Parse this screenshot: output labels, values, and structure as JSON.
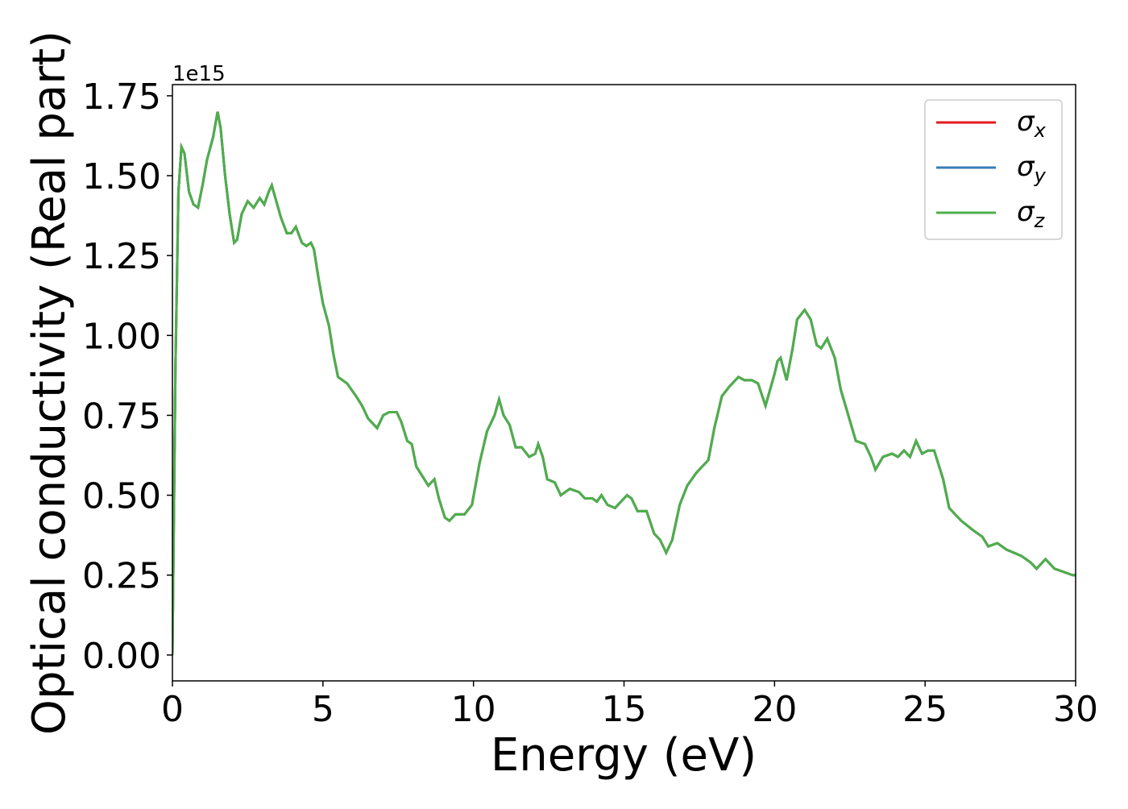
{
  "chart_data": {
    "type": "line",
    "xlabel": "Energy (eV)",
    "ylabel": "Optical conductivity (Real part)",
    "offset_label": "1e15",
    "xlim": [
      0,
      30
    ],
    "ylim": [
      -0.081,
      1.785
    ],
    "xticks": [
      0,
      5,
      10,
      15,
      20,
      25,
      30
    ],
    "yticks": [
      {
        "value": 0,
        "label": "0.00"
      },
      0.25,
      {
        "value": 0.5,
        "label": "0.50"
      },
      0.75,
      {
        "value": 1,
        "label": "1.00"
      },
      1.25,
      {
        "value": 1.5,
        "label": "1.50"
      },
      1.75
    ],
    "legend": "upper right",
    "grid": false,
    "x": [
      0,
      0.1,
      0.2,
      0.3,
      0.4,
      0.55,
      0.7,
      0.85,
      1.0,
      1.15,
      1.35,
      1.5,
      1.6,
      1.75,
      1.9,
      2.05,
      2.15,
      2.3,
      2.5,
      2.7,
      2.9,
      3.05,
      3.2,
      3.3,
      3.45,
      3.6,
      3.8,
      3.95,
      4.1,
      4.3,
      4.45,
      4.6,
      4.7,
      4.85,
      5.0,
      5.2,
      5.35,
      5.5,
      5.8,
      6.1,
      6.3,
      6.5,
      6.8,
      7.0,
      7.2,
      7.45,
      7.6,
      7.8,
      7.95,
      8.1,
      8.3,
      8.5,
      8.7,
      8.85,
      9.05,
      9.2,
      9.4,
      9.7,
      9.95,
      10.2,
      10.45,
      10.7,
      10.85,
      11.0,
      11.2,
      11.4,
      11.6,
      11.85,
      12.05,
      12.15,
      12.3,
      12.45,
      12.7,
      12.9,
      13.2,
      13.5,
      13.7,
      13.95,
      14.1,
      14.25,
      14.45,
      14.7,
      14.9,
      15.1,
      15.25,
      15.45,
      15.75,
      16.0,
      16.2,
      16.4,
      16.6,
      16.85,
      17.1,
      17.4,
      17.6,
      17.8,
      18.0,
      18.25,
      18.5,
      18.8,
      19.0,
      19.25,
      19.45,
      19.7,
      20.0,
      20.1,
      20.2,
      20.4,
      20.6,
      20.75,
      21.0,
      21.2,
      21.4,
      21.55,
      21.75,
      22.0,
      22.2,
      22.45,
      22.7,
      23.0,
      23.2,
      23.35,
      23.6,
      23.9,
      24.1,
      24.3,
      24.5,
      24.7,
      24.9,
      25.1,
      25.3,
      25.6,
      25.8,
      26.2,
      26.6,
      26.9,
      27.1,
      27.4,
      27.7,
      28.2,
      28.5,
      28.7,
      29.0,
      29.3,
      29.6,
      29.9,
      30.0
    ],
    "series": [
      {
        "name": "σx",
        "color": "#e41a1c",
        "values": [
          0.0,
          0.9,
          1.45,
          1.59,
          1.57,
          1.45,
          1.41,
          1.4,
          1.47,
          1.55,
          1.62,
          1.7,
          1.65,
          1.5,
          1.38,
          1.29,
          1.3,
          1.38,
          1.42,
          1.4,
          1.43,
          1.41,
          1.45,
          1.47,
          1.42,
          1.37,
          1.32,
          1.32,
          1.34,
          1.29,
          1.28,
          1.29,
          1.27,
          1.18,
          1.1,
          1.03,
          0.94,
          0.87,
          0.85,
          0.81,
          0.78,
          0.74,
          0.71,
          0.75,
          0.76,
          0.76,
          0.73,
          0.67,
          0.66,
          0.59,
          0.56,
          0.53,
          0.55,
          0.49,
          0.43,
          0.42,
          0.44,
          0.44,
          0.47,
          0.6,
          0.7,
          0.75,
          0.8,
          0.75,
          0.72,
          0.65,
          0.65,
          0.62,
          0.63,
          0.66,
          0.62,
          0.55,
          0.54,
          0.5,
          0.52,
          0.51,
          0.49,
          0.49,
          0.48,
          0.5,
          0.47,
          0.46,
          0.48,
          0.5,
          0.49,
          0.45,
          0.45,
          0.38,
          0.36,
          0.32,
          0.36,
          0.47,
          0.53,
          0.57,
          0.59,
          0.61,
          0.71,
          0.81,
          0.84,
          0.87,
          0.86,
          0.86,
          0.85,
          0.78,
          0.88,
          0.92,
          0.93,
          0.86,
          0.96,
          1.05,
          1.08,
          1.05,
          0.97,
          0.96,
          0.99,
          0.93,
          0.83,
          0.75,
          0.67,
          0.66,
          0.62,
          0.58,
          0.62,
          0.63,
          0.62,
          0.64,
          0.62,
          0.67,
          0.63,
          0.64,
          0.64,
          0.55,
          0.46,
          0.42,
          0.39,
          0.37,
          0.34,
          0.35,
          0.33,
          0.31,
          0.29,
          0.27,
          0.3,
          0.27,
          0.26,
          0.25,
          0.25
        ]
      },
      {
        "name": "σy",
        "color": "#377eb8",
        "values": [
          0.0,
          0.9,
          1.45,
          1.59,
          1.57,
          1.45,
          1.41,
          1.4,
          1.47,
          1.55,
          1.62,
          1.7,
          1.65,
          1.5,
          1.38,
          1.29,
          1.3,
          1.38,
          1.42,
          1.4,
          1.43,
          1.41,
          1.45,
          1.47,
          1.42,
          1.37,
          1.32,
          1.32,
          1.34,
          1.29,
          1.28,
          1.29,
          1.27,
          1.18,
          1.1,
          1.03,
          0.94,
          0.87,
          0.85,
          0.81,
          0.78,
          0.74,
          0.71,
          0.75,
          0.76,
          0.76,
          0.73,
          0.67,
          0.66,
          0.59,
          0.56,
          0.53,
          0.55,
          0.49,
          0.43,
          0.42,
          0.44,
          0.44,
          0.47,
          0.6,
          0.7,
          0.75,
          0.8,
          0.75,
          0.72,
          0.65,
          0.65,
          0.62,
          0.63,
          0.66,
          0.62,
          0.55,
          0.54,
          0.5,
          0.52,
          0.51,
          0.49,
          0.49,
          0.48,
          0.5,
          0.47,
          0.46,
          0.48,
          0.5,
          0.49,
          0.45,
          0.45,
          0.38,
          0.36,
          0.32,
          0.36,
          0.47,
          0.53,
          0.57,
          0.59,
          0.61,
          0.71,
          0.81,
          0.84,
          0.87,
          0.86,
          0.86,
          0.85,
          0.78,
          0.88,
          0.92,
          0.93,
          0.86,
          0.96,
          1.05,
          1.08,
          1.05,
          0.97,
          0.96,
          0.99,
          0.93,
          0.83,
          0.75,
          0.67,
          0.66,
          0.62,
          0.58,
          0.62,
          0.63,
          0.62,
          0.64,
          0.62,
          0.67,
          0.63,
          0.64,
          0.64,
          0.55,
          0.46,
          0.42,
          0.39,
          0.37,
          0.34,
          0.35,
          0.33,
          0.31,
          0.29,
          0.27,
          0.3,
          0.27,
          0.26,
          0.25,
          0.25
        ]
      },
      {
        "name": "σz",
        "color": "#4daf4a",
        "values": [
          0.0,
          0.9,
          1.45,
          1.59,
          1.57,
          1.45,
          1.41,
          1.4,
          1.47,
          1.55,
          1.62,
          1.7,
          1.65,
          1.5,
          1.38,
          1.29,
          1.3,
          1.38,
          1.42,
          1.4,
          1.43,
          1.41,
          1.45,
          1.47,
          1.42,
          1.37,
          1.32,
          1.32,
          1.34,
          1.29,
          1.28,
          1.29,
          1.27,
          1.18,
          1.1,
          1.03,
          0.94,
          0.87,
          0.85,
          0.81,
          0.78,
          0.74,
          0.71,
          0.75,
          0.76,
          0.76,
          0.73,
          0.67,
          0.66,
          0.59,
          0.56,
          0.53,
          0.55,
          0.49,
          0.43,
          0.42,
          0.44,
          0.44,
          0.47,
          0.6,
          0.7,
          0.75,
          0.8,
          0.75,
          0.72,
          0.65,
          0.65,
          0.62,
          0.63,
          0.66,
          0.62,
          0.55,
          0.54,
          0.5,
          0.52,
          0.51,
          0.49,
          0.49,
          0.48,
          0.5,
          0.47,
          0.46,
          0.48,
          0.5,
          0.49,
          0.45,
          0.45,
          0.38,
          0.36,
          0.32,
          0.36,
          0.47,
          0.53,
          0.57,
          0.59,
          0.61,
          0.71,
          0.81,
          0.84,
          0.87,
          0.86,
          0.86,
          0.85,
          0.78,
          0.88,
          0.92,
          0.93,
          0.86,
          0.96,
          1.05,
          1.08,
          1.05,
          0.97,
          0.96,
          0.99,
          0.93,
          0.83,
          0.75,
          0.67,
          0.66,
          0.62,
          0.58,
          0.62,
          0.63,
          0.62,
          0.64,
          0.62,
          0.67,
          0.63,
          0.64,
          0.64,
          0.55,
          0.46,
          0.42,
          0.39,
          0.37,
          0.34,
          0.35,
          0.33,
          0.31,
          0.29,
          0.27,
          0.3,
          0.27,
          0.26,
          0.25,
          0.25
        ]
      }
    ]
  }
}
